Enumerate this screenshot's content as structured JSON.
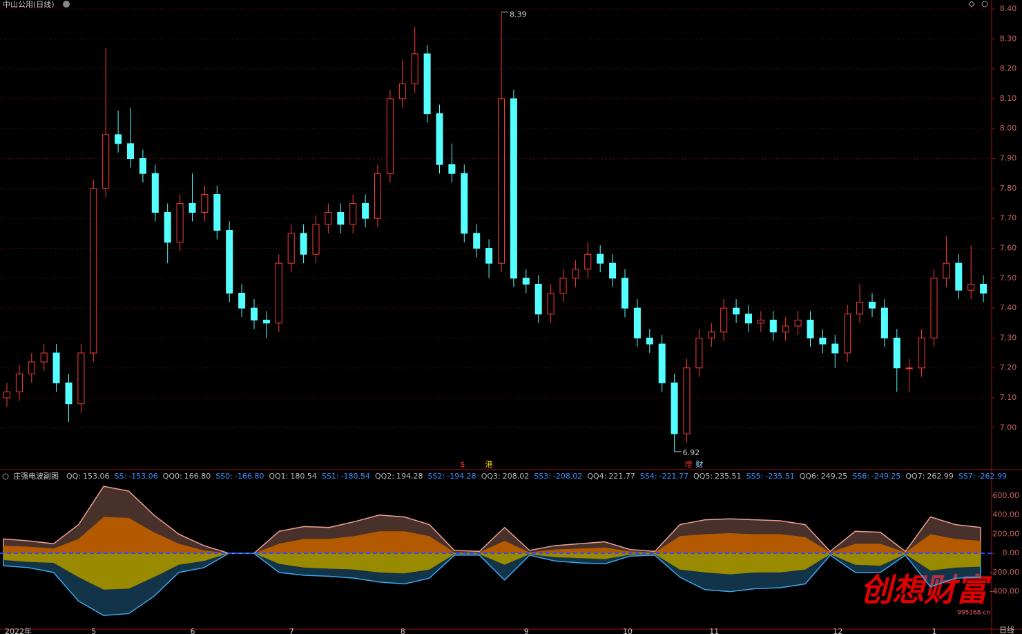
{
  "title": "中山公用(日线)",
  "period": "日线",
  "markers": [
    "$",
    "港",
    "增",
    "财"
  ],
  "watermark": {
    "text": "创想财富",
    "url": "995168.cn"
  },
  "chart_data": [
    {
      "type": "candlestick",
      "categories": [
        "2022年",
        null,
        null,
        null,
        null,
        null,
        null,
        "5",
        null,
        null,
        null,
        null,
        null,
        null,
        null,
        "6",
        null,
        null,
        null,
        null,
        null,
        null,
        null,
        "7",
        null,
        null,
        null,
        null,
        null,
        null,
        null,
        null,
        "8",
        null,
        null,
        null,
        null,
        null,
        null,
        null,
        null,
        null,
        "9",
        null,
        null,
        null,
        null,
        null,
        null,
        null,
        "10",
        null,
        null,
        null,
        null,
        null,
        null,
        "11",
        null,
        null,
        null,
        null,
        null,
        null,
        null,
        null,
        null,
        "12",
        null,
        null,
        null,
        null,
        null,
        null,
        null,
        "1",
        null,
        null,
        null,
        null
      ],
      "open": [
        7.1,
        7.12,
        7.18,
        7.22,
        7.25,
        7.15,
        7.08,
        7.25,
        7.8,
        7.98,
        7.95,
        7.9,
        7.85,
        7.72,
        7.62,
        7.75,
        7.72,
        7.78,
        7.66,
        7.45,
        7.4,
        7.36,
        7.35,
        7.55,
        7.65,
        7.58,
        7.68,
        7.72,
        7.68,
        7.75,
        7.7,
        7.85,
        8.1,
        8.15,
        8.25,
        8.05,
        7.88,
        7.85,
        7.65,
        7.6,
        7.55,
        8.1,
        7.5,
        7.48,
        7.38,
        7.45,
        7.5,
        7.53,
        7.58,
        7.55,
        7.5,
        7.4,
        7.3,
        7.28,
        7.15,
        6.98,
        7.2,
        7.3,
        7.32,
        7.4,
        7.38,
        7.35,
        7.36,
        7.32,
        7.34,
        7.36,
        7.3,
        7.28,
        7.25,
        7.38,
        7.42,
        7.4,
        7.3,
        7.2,
        7.2,
        7.3,
        7.5,
        7.55,
        7.46,
        7.48
      ],
      "high": [
        7.15,
        7.21,
        7.25,
        7.28,
        7.28,
        7.18,
        7.28,
        7.83,
        8.27,
        8.06,
        8.07,
        7.93,
        7.88,
        7.75,
        7.78,
        7.85,
        7.81,
        7.81,
        7.69,
        7.48,
        7.43,
        7.39,
        7.58,
        7.68,
        7.68,
        7.71,
        7.75,
        7.75,
        7.78,
        7.78,
        7.88,
        8.13,
        8.23,
        8.34,
        8.28,
        8.08,
        7.95,
        7.88,
        7.68,
        7.63,
        8.39,
        8.13,
        7.53,
        7.51,
        7.48,
        7.53,
        7.56,
        7.62,
        7.61,
        7.58,
        7.53,
        7.43,
        7.33,
        7.31,
        7.18,
        7.23,
        7.33,
        7.35,
        7.43,
        7.43,
        7.41,
        7.39,
        7.39,
        7.37,
        7.39,
        7.39,
        7.33,
        7.31,
        7.41,
        7.48,
        7.45,
        7.43,
        7.33,
        7.23,
        7.33,
        7.53,
        7.64,
        7.58,
        7.61,
        7.51
      ],
      "low": [
        7.07,
        7.09,
        7.15,
        7.19,
        7.12,
        7.02,
        7.05,
        7.22,
        7.77,
        7.92,
        7.87,
        7.82,
        7.69,
        7.55,
        7.59,
        7.69,
        7.69,
        7.63,
        7.42,
        7.37,
        7.33,
        7.3,
        7.32,
        7.52,
        7.55,
        7.55,
        7.65,
        7.65,
        7.65,
        7.67,
        7.67,
        7.82,
        8.07,
        8.12,
        8.02,
        7.85,
        7.82,
        7.62,
        7.57,
        7.5,
        7.52,
        7.47,
        7.45,
        7.35,
        7.35,
        7.42,
        7.47,
        7.5,
        7.52,
        7.47,
        7.37,
        7.27,
        7.25,
        7.12,
        6.92,
        6.95,
        7.17,
        7.27,
        7.29,
        7.35,
        7.32,
        7.32,
        7.29,
        7.29,
        7.31,
        7.27,
        7.25,
        7.2,
        7.22,
        7.35,
        7.37,
        7.27,
        7.12,
        7.12,
        7.17,
        7.27,
        7.47,
        7.43,
        7.43,
        7.42
      ],
      "close": [
        7.12,
        7.18,
        7.22,
        7.25,
        7.15,
        7.08,
        7.25,
        7.8,
        7.98,
        7.95,
        7.9,
        7.85,
        7.72,
        7.62,
        7.75,
        7.72,
        7.78,
        7.66,
        7.45,
        7.4,
        7.36,
        7.35,
        7.55,
        7.65,
        7.58,
        7.68,
        7.72,
        7.68,
        7.75,
        7.7,
        7.85,
        8.1,
        8.15,
        8.25,
        8.05,
        7.88,
        7.85,
        7.65,
        7.6,
        7.55,
        8.1,
        7.5,
        7.48,
        7.38,
        7.45,
        7.5,
        7.53,
        7.58,
        7.55,
        7.5,
        7.4,
        7.3,
        7.28,
        7.15,
        6.98,
        7.2,
        7.3,
        7.32,
        7.4,
        7.38,
        7.35,
        7.36,
        7.32,
        7.34,
        7.36,
        7.3,
        7.28,
        7.25,
        7.38,
        7.42,
        7.4,
        7.3,
        7.2,
        7.2,
        7.3,
        7.5,
        7.55,
        7.46,
        7.48,
        7.45
      ],
      "up_color": "#ff3c3c",
      "down_color": "#54ffff",
      "ylim": [
        6.86,
        8.43
      ],
      "yticks": [
        {
          "value": 7.0,
          "label": "7.00"
        },
        {
          "value": 7.1,
          "label": "7.10"
        },
        {
          "value": 7.2,
          "label": "7.20"
        },
        {
          "value": 7.3,
          "label": "7.30"
        },
        {
          "value": 7.4,
          "label": "7.40"
        },
        {
          "value": 7.5,
          "label": "7.50"
        },
        {
          "value": 7.6,
          "label": "7.60"
        },
        {
          "value": 7.7,
          "label": "7.70"
        },
        {
          "value": 7.8,
          "label": "7.80"
        },
        {
          "value": 7.9,
          "label": "7.90"
        },
        {
          "value": 8.0,
          "label": "8.00"
        },
        {
          "value": 8.1,
          "label": "8.10"
        },
        {
          "value": 8.2,
          "label": "8.20"
        },
        {
          "value": 8.3,
          "label": "8.30"
        },
        {
          "value": 8.4,
          "label": "8.40"
        }
      ],
      "grid": true
    },
    {
      "type": "area",
      "title": "庄强电波副图",
      "readout": [
        {
          "name": "QQ:",
          "value": "153.06"
        },
        {
          "name": "SS:",
          "value": "-153.06"
        },
        {
          "name": "QQ0:",
          "value": "166.80"
        },
        {
          "name": "SS0:",
          "value": "-166.80"
        },
        {
          "name": "QQ1:",
          "value": "180.54"
        },
        {
          "name": "SS1:",
          "value": "-180.54"
        },
        {
          "name": "QQ2:",
          "value": "194.28"
        },
        {
          "name": "SS2:",
          "value": "-194.28"
        },
        {
          "name": "QQ3:",
          "value": "208.02"
        },
        {
          "name": "SS3:",
          "value": "-208.02"
        },
        {
          "name": "QQ4:",
          "value": "221.77"
        },
        {
          "name": "SS4:",
          "value": "-221.77"
        },
        {
          "name": "QQ5:",
          "value": "235.51"
        },
        {
          "name": "SS5:",
          "value": "-235.51"
        },
        {
          "name": "QQ6:",
          "value": "249.25"
        },
        {
          "name": "SS6:",
          "value": "-249.25"
        },
        {
          "name": "QQ7:",
          "value": "262.99"
        },
        {
          "name": "SS7:",
          "value": "-262.99"
        }
      ],
      "series": [
        {
          "name": "QQ7",
          "color": "#f0a090",
          "values": [
            150,
            130,
            100,
            300,
            700,
            650,
            400,
            200,
            80,
            0,
            0,
            230,
            280,
            270,
            330,
            400,
            380,
            300,
            30,
            20,
            270,
            30,
            80,
            100,
            120,
            40,
            20,
            300,
            350,
            360,
            350,
            340,
            300,
            20,
            230,
            220,
            20,
            380,
            300,
            270
          ]
        },
        {
          "name": "SS7",
          "color": "#3aa8f0",
          "values": [
            -130,
            -150,
            -200,
            -500,
            -650,
            -630,
            -450,
            -200,
            -150,
            0,
            0,
            -200,
            -230,
            -240,
            -260,
            -300,
            -320,
            -260,
            -20,
            -20,
            -280,
            -20,
            -80,
            -100,
            -110,
            -30,
            -20,
            -250,
            -380,
            -400,
            -370,
            -360,
            -320,
            -20,
            -200,
            -200,
            -20,
            -350,
            -260,
            -250
          ]
        },
        {
          "name": "QQ",
          "color": "#b35a00",
          "values": [
            80,
            70,
            50,
            150,
            380,
            370,
            220,
            100,
            30,
            0,
            0,
            100,
            150,
            150,
            180,
            230,
            230,
            180,
            10,
            10,
            130,
            10,
            40,
            50,
            60,
            20,
            10,
            180,
            200,
            210,
            200,
            200,
            170,
            10,
            100,
            100,
            10,
            200,
            150,
            130
          ]
        },
        {
          "name": "SS",
          "color": "#9a8a00",
          "values": [
            -70,
            -90,
            -100,
            -250,
            -380,
            -370,
            -250,
            -120,
            -80,
            0,
            0,
            -110,
            -150,
            -160,
            -170,
            -200,
            -210,
            -170,
            -10,
            -10,
            -120,
            -10,
            -40,
            -50,
            -60,
            -15,
            -10,
            -170,
            -200,
            -220,
            -200,
            -200,
            -170,
            -10,
            -120,
            -130,
            -10,
            -180,
            -150,
            -140
          ]
        }
      ],
      "ylim": [
        -800,
        730
      ],
      "yticks": [
        {
          "value": 600,
          "label": "600.00"
        },
        {
          "value": 400,
          "label": "400.00"
        },
        {
          "value": 200,
          "label": "200.00"
        },
        {
          "value": 0,
          "label": "0.00"
        },
        {
          "value": -200,
          "label": "-200.00"
        },
        {
          "value": -400,
          "label": "-400.00"
        }
      ]
    }
  ]
}
